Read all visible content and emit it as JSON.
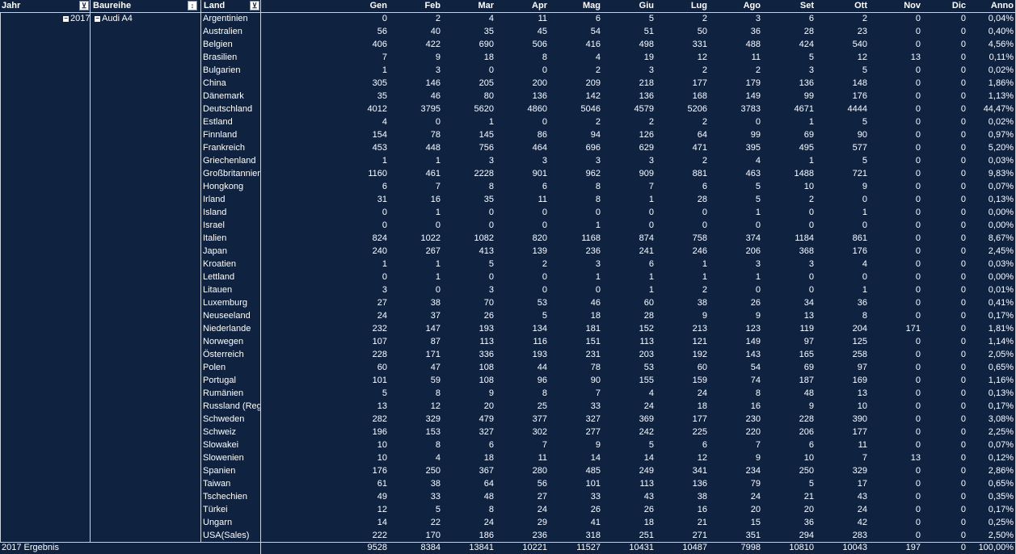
{
  "columns": {
    "jahr": "Jahr",
    "baureihe": "Baureihe",
    "land": "Land",
    "months": [
      "Gen",
      "Feb",
      "Mar",
      "Apr",
      "Mag",
      "Giu",
      "Lug",
      "Ago",
      "Set",
      "Ott",
      "Nov",
      "Dic",
      "Anno"
    ]
  },
  "tree": {
    "year": "2017",
    "series": "Audi A4"
  },
  "rows": [
    {
      "land": "Argentinien",
      "v": [
        "0",
        "2",
        "4",
        "11",
        "6",
        "5",
        "2",
        "3",
        "6",
        "2",
        "0",
        "0",
        "0,04%"
      ]
    },
    {
      "land": "Australien",
      "v": [
        "56",
        "40",
        "35",
        "45",
        "54",
        "51",
        "50",
        "36",
        "28",
        "23",
        "0",
        "0",
        "0,40%"
      ]
    },
    {
      "land": "Belgien",
      "v": [
        "406",
        "422",
        "690",
        "506",
        "416",
        "498",
        "331",
        "488",
        "424",
        "540",
        "0",
        "0",
        "4,56%"
      ]
    },
    {
      "land": "Brasilien",
      "v": [
        "7",
        "9",
        "18",
        "8",
        "4",
        "19",
        "12",
        "11",
        "5",
        "12",
        "13",
        "0",
        "0,11%"
      ]
    },
    {
      "land": "Bulgarien",
      "v": [
        "1",
        "3",
        "0",
        "0",
        "2",
        "3",
        "2",
        "2",
        "3",
        "5",
        "0",
        "0",
        "0,02%"
      ]
    },
    {
      "land": "China",
      "v": [
        "305",
        "146",
        "205",
        "200",
        "209",
        "218",
        "177",
        "179",
        "136",
        "148",
        "0",
        "0",
        "1,86%"
      ]
    },
    {
      "land": "Dänemark",
      "v": [
        "35",
        "46",
        "80",
        "136",
        "142",
        "136",
        "168",
        "149",
        "99",
        "176",
        "0",
        "0",
        "1,13%"
      ]
    },
    {
      "land": "Deutschland",
      "v": [
        "4012",
        "3795",
        "5620",
        "4860",
        "5046",
        "4579",
        "5206",
        "3783",
        "4671",
        "4444",
        "0",
        "0",
        "44,47%"
      ]
    },
    {
      "land": "Estland",
      "v": [
        "4",
        "0",
        "1",
        "0",
        "2",
        "2",
        "2",
        "0",
        "1",
        "5",
        "0",
        "0",
        "0,02%"
      ]
    },
    {
      "land": "Finnland",
      "v": [
        "154",
        "78",
        "145",
        "86",
        "94",
        "126",
        "64",
        "99",
        "69",
        "90",
        "0",
        "0",
        "0,97%"
      ]
    },
    {
      "land": "Frankreich",
      "v": [
        "453",
        "448",
        "756",
        "464",
        "696",
        "629",
        "471",
        "395",
        "495",
        "577",
        "0",
        "0",
        "5,20%"
      ]
    },
    {
      "land": "Griechenland",
      "v": [
        "1",
        "1",
        "3",
        "3",
        "3",
        "3",
        "2",
        "4",
        "1",
        "5",
        "0",
        "0",
        "0,03%"
      ]
    },
    {
      "land": "Großbritannien",
      "v": [
        "1160",
        "461",
        "2228",
        "901",
        "962",
        "909",
        "881",
        "463",
        "1488",
        "721",
        "0",
        "0",
        "9,83%"
      ]
    },
    {
      "land": "Hongkong",
      "v": [
        "6",
        "7",
        "8",
        "6",
        "8",
        "7",
        "6",
        "5",
        "10",
        "9",
        "0",
        "0",
        "0,07%"
      ]
    },
    {
      "land": "Irland",
      "v": [
        "31",
        "16",
        "35",
        "11",
        "8",
        "1",
        "28",
        "5",
        "2",
        "0",
        "0",
        "0",
        "0,13%"
      ]
    },
    {
      "land": "Island",
      "v": [
        "0",
        "1",
        "0",
        "0",
        "0",
        "0",
        "0",
        "1",
        "0",
        "1",
        "0",
        "0",
        "0,00%"
      ]
    },
    {
      "land": "Israel",
      "v": [
        "0",
        "0",
        "0",
        "0",
        "1",
        "0",
        "0",
        "0",
        "0",
        "0",
        "0",
        "0",
        "0,00%"
      ]
    },
    {
      "land": "Italien",
      "v": [
        "824",
        "1022",
        "1082",
        "820",
        "1168",
        "874",
        "758",
        "374",
        "1184",
        "861",
        "0",
        "0",
        "8,67%"
      ]
    },
    {
      "land": "Japan",
      "v": [
        "240",
        "267",
        "413",
        "139",
        "236",
        "241",
        "246",
        "206",
        "368",
        "176",
        "0",
        "0",
        "2,45%"
      ]
    },
    {
      "land": "Kroatien",
      "v": [
        "1",
        "1",
        "5",
        "2",
        "3",
        "6",
        "1",
        "3",
        "3",
        "4",
        "0",
        "0",
        "0,03%"
      ]
    },
    {
      "land": "Lettland",
      "v": [
        "0",
        "1",
        "0",
        "0",
        "1",
        "1",
        "1",
        "1",
        "0",
        "0",
        "0",
        "0",
        "0,00%"
      ]
    },
    {
      "land": "Litauen",
      "v": [
        "3",
        "0",
        "3",
        "0",
        "0",
        "1",
        "2",
        "0",
        "0",
        "1",
        "0",
        "0",
        "0,01%"
      ]
    },
    {
      "land": "Luxemburg",
      "v": [
        "27",
        "38",
        "70",
        "53",
        "46",
        "60",
        "38",
        "26",
        "34",
        "36",
        "0",
        "0",
        "0,41%"
      ]
    },
    {
      "land": "Neuseeland",
      "v": [
        "24",
        "37",
        "26",
        "5",
        "18",
        "28",
        "9",
        "9",
        "13",
        "8",
        "0",
        "0",
        "0,17%"
      ]
    },
    {
      "land": "Niederlande",
      "v": [
        "232",
        "147",
        "193",
        "134",
        "181",
        "152",
        "213",
        "123",
        "119",
        "204",
        "171",
        "0",
        "1,81%"
      ]
    },
    {
      "land": "Norwegen",
      "v": [
        "107",
        "87",
        "113",
        "116",
        "151",
        "113",
        "121",
        "149",
        "97",
        "125",
        "0",
        "0",
        "1,14%"
      ]
    },
    {
      "land": "Österreich",
      "v": [
        "228",
        "171",
        "336",
        "193",
        "231",
        "203",
        "192",
        "143",
        "165",
        "258",
        "0",
        "0",
        "2,05%"
      ]
    },
    {
      "land": "Polen",
      "v": [
        "60",
        "47",
        "108",
        "44",
        "78",
        "53",
        "60",
        "54",
        "69",
        "97",
        "0",
        "0",
        "0,65%"
      ]
    },
    {
      "land": "Portugal",
      "v": [
        "101",
        "59",
        "108",
        "96",
        "90",
        "155",
        "159",
        "74",
        "187",
        "169",
        "0",
        "0",
        "1,16%"
      ]
    },
    {
      "land": "Rumänien",
      "v": [
        "5",
        "8",
        "9",
        "8",
        "7",
        "4",
        "24",
        "8",
        "48",
        "13",
        "0",
        "0",
        "0,13%"
      ]
    },
    {
      "land": "Russland (Reg",
      "v": [
        "13",
        "12",
        "20",
        "25",
        "33",
        "24",
        "18",
        "16",
        "9",
        "10",
        "0",
        "0",
        "0,17%"
      ]
    },
    {
      "land": "Schweden",
      "v": [
        "282",
        "329",
        "479",
        "377",
        "327",
        "369",
        "177",
        "230",
        "228",
        "390",
        "0",
        "0",
        "3,08%"
      ]
    },
    {
      "land": "Schweiz",
      "v": [
        "196",
        "153",
        "327",
        "302",
        "277",
        "242",
        "225",
        "220",
        "206",
        "177",
        "0",
        "0",
        "2,25%"
      ]
    },
    {
      "land": "Slowakei",
      "v": [
        "10",
        "8",
        "6",
        "7",
        "9",
        "5",
        "6",
        "7",
        "6",
        "11",
        "0",
        "0",
        "0,07%"
      ]
    },
    {
      "land": "Slowenien",
      "v": [
        "10",
        "4",
        "18",
        "11",
        "14",
        "14",
        "12",
        "9",
        "10",
        "7",
        "13",
        "0",
        "0,12%"
      ]
    },
    {
      "land": "Spanien",
      "v": [
        "176",
        "250",
        "367",
        "280",
        "485",
        "249",
        "341",
        "234",
        "250",
        "329",
        "0",
        "0",
        "2,86%"
      ]
    },
    {
      "land": "Taiwan",
      "v": [
        "61",
        "38",
        "64",
        "56",
        "101",
        "113",
        "136",
        "79",
        "5",
        "17",
        "0",
        "0",
        "0,65%"
      ]
    },
    {
      "land": "Tschechien",
      "v": [
        "49",
        "33",
        "48",
        "27",
        "33",
        "43",
        "38",
        "24",
        "21",
        "43",
        "0",
        "0",
        "0,35%"
      ]
    },
    {
      "land": "Türkei",
      "v": [
        "12",
        "5",
        "8",
        "24",
        "26",
        "26",
        "16",
        "20",
        "20",
        "24",
        "0",
        "0",
        "0,17%"
      ]
    },
    {
      "land": "Ungarn",
      "v": [
        "14",
        "22",
        "24",
        "29",
        "41",
        "18",
        "21",
        "15",
        "36",
        "42",
        "0",
        "0",
        "0,25%"
      ]
    },
    {
      "land": "USA(Sales)",
      "v": [
        "222",
        "170",
        "186",
        "236",
        "318",
        "251",
        "271",
        "351",
        "294",
        "283",
        "0",
        "0",
        "2,50%"
      ]
    }
  ],
  "total": {
    "label": "2017 Ergebnis",
    "v": [
      "9528",
      "8384",
      "13841",
      "10221",
      "11527",
      "10431",
      "10487",
      "7998",
      "10810",
      "10043",
      "197",
      "0",
      "100,00%"
    ]
  },
  "icons": {
    "filter": "filter-icon",
    "sort_filter": "sort-filter-icon",
    "collapse": "collapse-icon"
  },
  "colors": {
    "background": "#0f2240",
    "text": "#ffffff",
    "grid": "#c9d1dc"
  }
}
